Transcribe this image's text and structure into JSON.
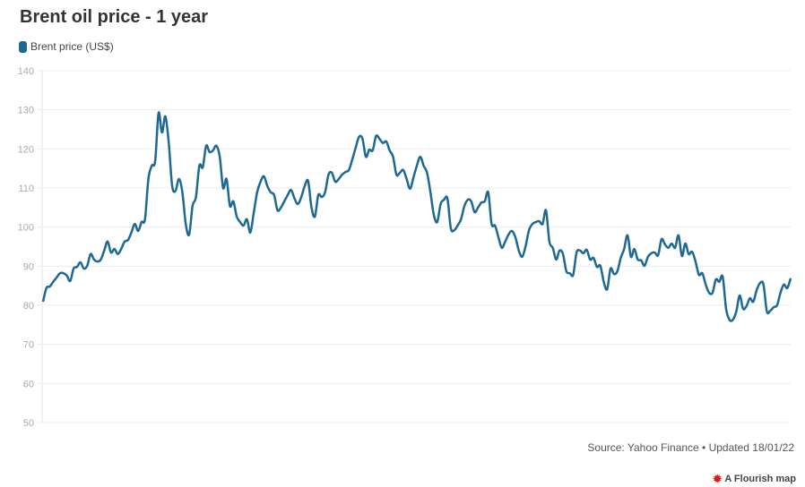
{
  "chart_data": {
    "type": "line",
    "title": "Brent oil price - 1 year",
    "xlabel": "",
    "ylabel": "",
    "ylim": [
      50,
      140
    ],
    "yticks": [
      "50",
      "60",
      "70",
      "80",
      "90",
      "100",
      "110",
      "120",
      "130",
      "140"
    ],
    "grid": true,
    "legend": "top-left",
    "series": [
      {
        "name": "Brent price (US$)",
        "color": "#1d6894",
        "values": [
          80.9,
          84.4,
          84.8,
          86.0,
          87.1,
          88.2,
          88.2,
          87.6,
          86.2,
          89.4,
          89.8,
          91.0,
          89.4,
          90.1,
          93.1,
          91.7,
          91.2,
          91.7,
          94.0,
          96.3,
          93.5,
          94.4,
          93.1,
          94.4,
          96.3,
          96.7,
          98.6,
          100.8,
          99.0,
          101.3,
          102.0,
          112.3,
          115.7,
          116.9,
          129.2,
          124.2,
          128.3,
          121.5,
          110.5,
          109.3,
          112.3,
          108.9,
          100.8,
          98.1,
          105.4,
          107.7,
          115.7,
          115.3,
          120.8,
          119.2,
          119.6,
          120.8,
          118.0,
          110.0,
          112.3,
          105.4,
          106.6,
          102.7,
          101.3,
          100.4,
          102.0,
          98.6,
          103.6,
          108.9,
          111.6,
          113.0,
          110.5,
          108.9,
          108.2,
          104.3,
          105.0,
          106.6,
          108.2,
          109.5,
          107.3,
          105.9,
          107.7,
          110.5,
          111.8,
          105.0,
          102.7,
          108.2,
          107.7,
          108.9,
          113.4,
          113.9,
          111.6,
          112.3,
          113.4,
          114.1,
          114.6,
          117.3,
          120.3,
          123.1,
          122.6,
          118.0,
          119.8,
          119.6,
          123.3,
          122.6,
          121.5,
          121.9,
          119.6,
          118.0,
          113.4,
          113.9,
          114.6,
          112.3,
          109.8,
          112.7,
          115.7,
          118.0,
          115.7,
          113.9,
          108.9,
          103.1,
          101.3,
          105.9,
          107.0,
          107.3,
          99.7,
          99.2,
          100.4,
          102.0,
          105.4,
          107.0,
          106.6,
          103.8,
          105.0,
          106.3,
          106.6,
          108.9,
          100.8,
          100.4,
          97.4,
          94.7,
          96.3,
          98.1,
          99.0,
          97.4,
          94.0,
          92.4,
          95.1,
          99.2,
          100.8,
          101.3,
          101.5,
          100.8,
          104.3,
          96.3,
          94.7,
          91.7,
          94.0,
          93.1,
          88.7,
          88.2,
          87.8,
          93.5,
          94.0,
          93.3,
          94.2,
          91.7,
          92.1,
          89.8,
          90.1,
          86.0,
          84.1,
          89.4,
          88.0,
          88.7,
          92.1,
          94.4,
          97.9,
          92.4,
          94.4,
          91.7,
          91.5,
          90.1,
          92.4,
          93.3,
          93.5,
          92.8,
          96.9,
          95.6,
          94.7,
          95.8,
          94.7,
          97.9,
          92.6,
          95.8,
          93.1,
          93.7,
          91.2,
          87.8,
          88.2,
          85.3,
          83.2,
          83.2,
          86.6,
          86.0,
          87.3,
          79.1,
          76.3,
          76.3,
          78.4,
          82.5,
          79.1,
          79.8,
          81.8,
          80.9,
          83.9,
          85.7,
          85.3,
          78.4,
          78.6,
          79.5,
          80.0,
          83.2,
          85.3,
          84.4,
          86.9
        ]
      }
    ],
    "source": "Source: Yahoo Finance • Updated 18/01/22",
    "credit": "A Flourish map"
  }
}
